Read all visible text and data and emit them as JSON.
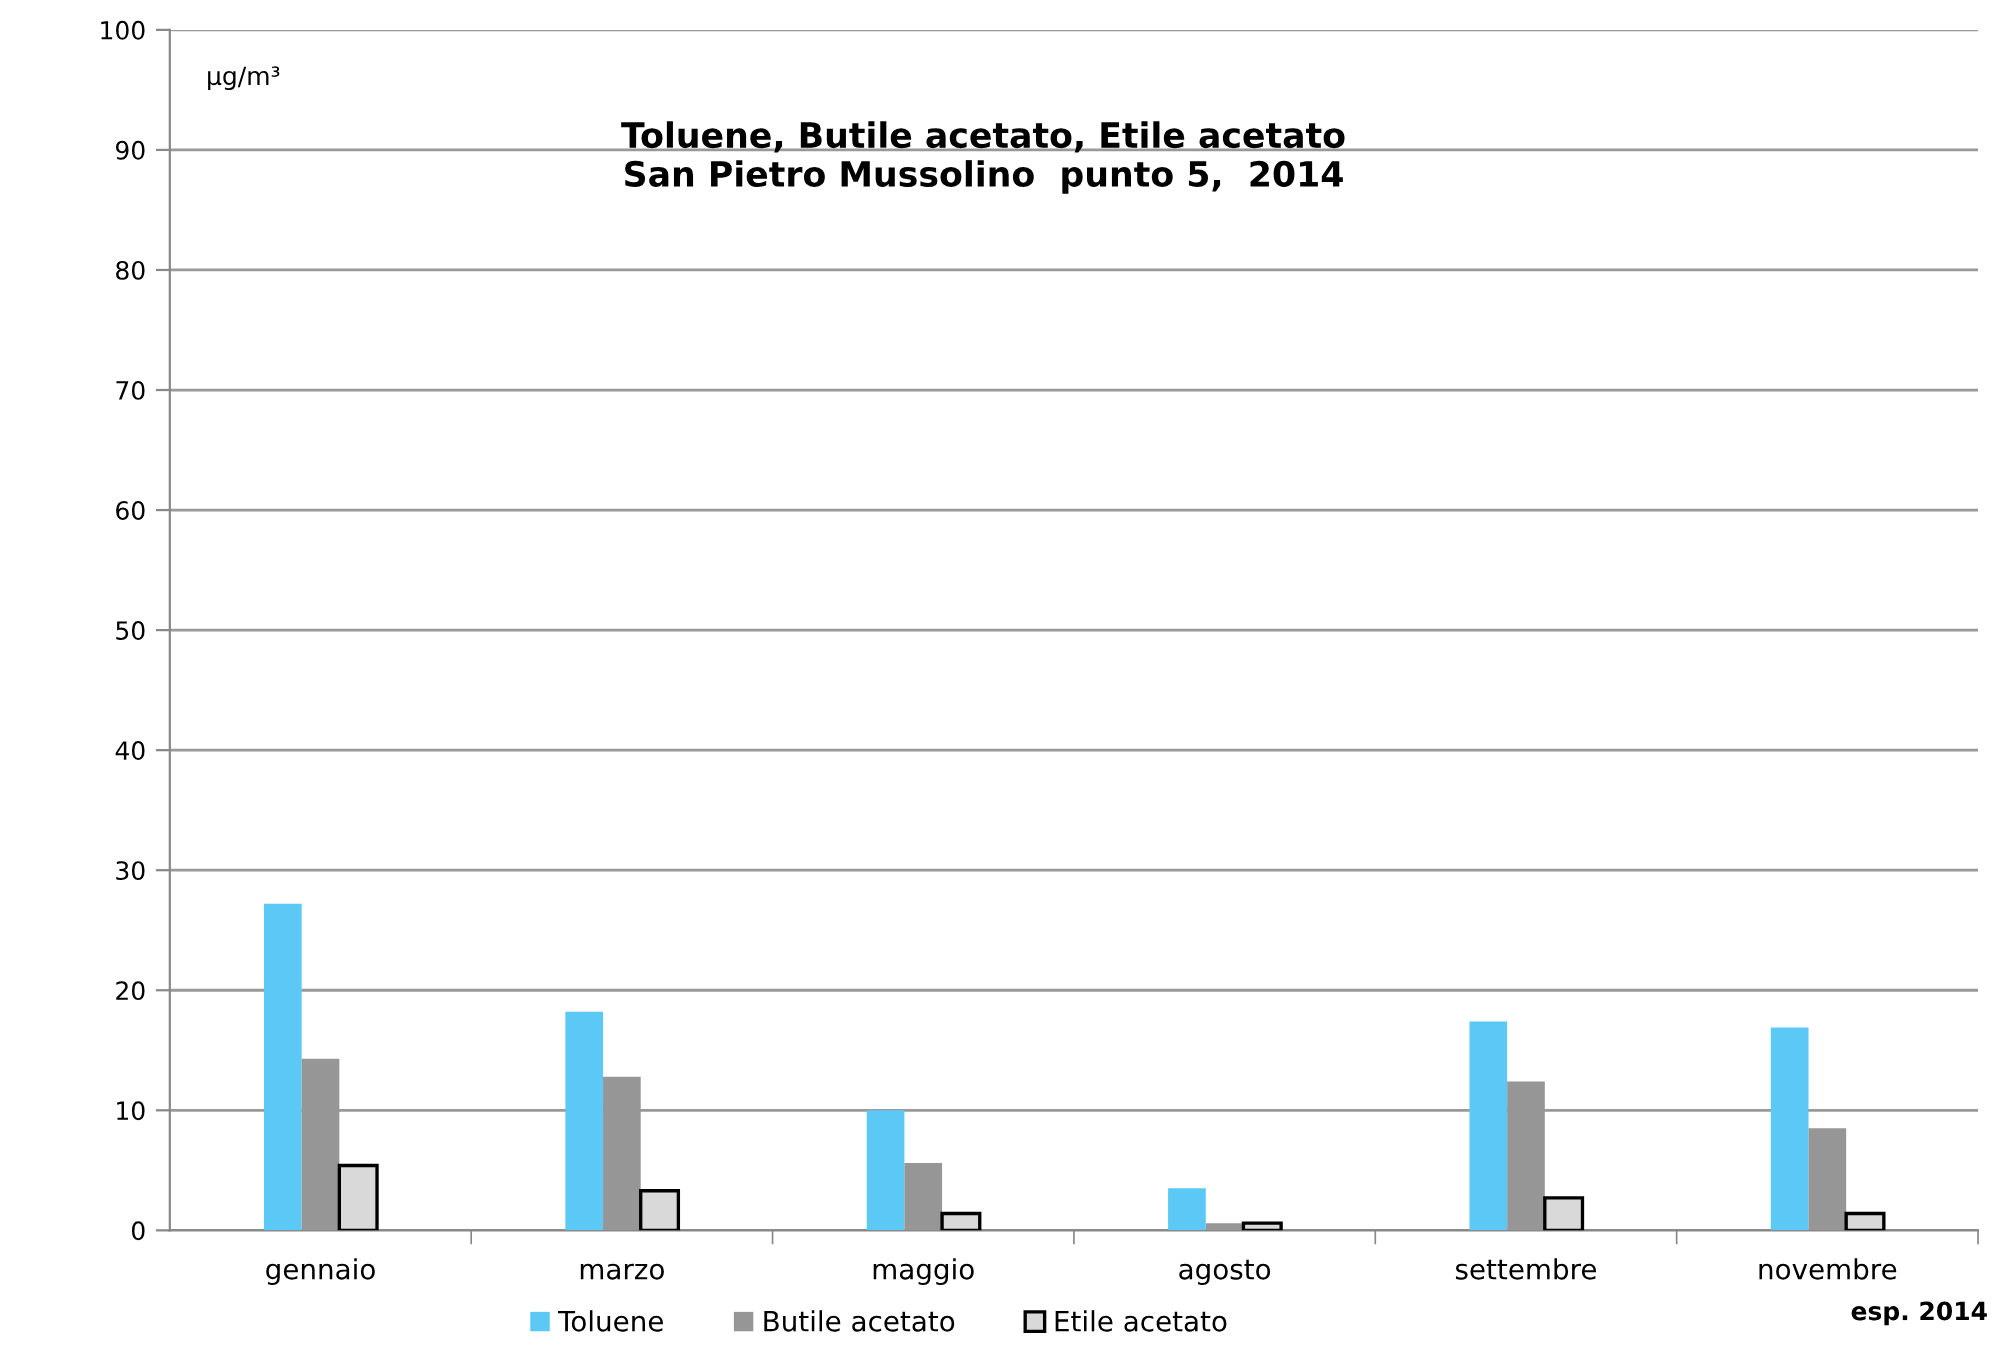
{
  "chart_data": {
    "type": "bar",
    "title": "Toluene, Butile acetato, Etile acetato\nSan Pietro Mussolino  punto 5,  2014",
    "ylabel": "µg/m³",
    "categories": [
      "gennaio",
      "marzo",
      "maggio",
      "agosto",
      "settembre",
      "novembre"
    ],
    "series": [
      {
        "name": "Toluene",
        "color": "#5bc8f5",
        "values": [
          27.2,
          18.2,
          10.0,
          3.5,
          17.4,
          16.9
        ]
      },
      {
        "name": "Butile acetato",
        "color": "#969696",
        "values": [
          14.3,
          12.8,
          5.6,
          0.6,
          12.4,
          8.5
        ]
      },
      {
        "name": "Etile acetato",
        "color": "#d9d9d9",
        "values": [
          5.4,
          3.3,
          1.4,
          0.6,
          2.7,
          1.4
        ]
      }
    ],
    "ylim": [
      0,
      100
    ],
    "yticks": [
      0,
      10,
      20,
      30,
      40,
      50,
      60,
      70,
      80,
      90,
      100
    ],
    "grid": "y",
    "legend": "bottom",
    "annotations": [
      "esp. 2014"
    ]
  }
}
